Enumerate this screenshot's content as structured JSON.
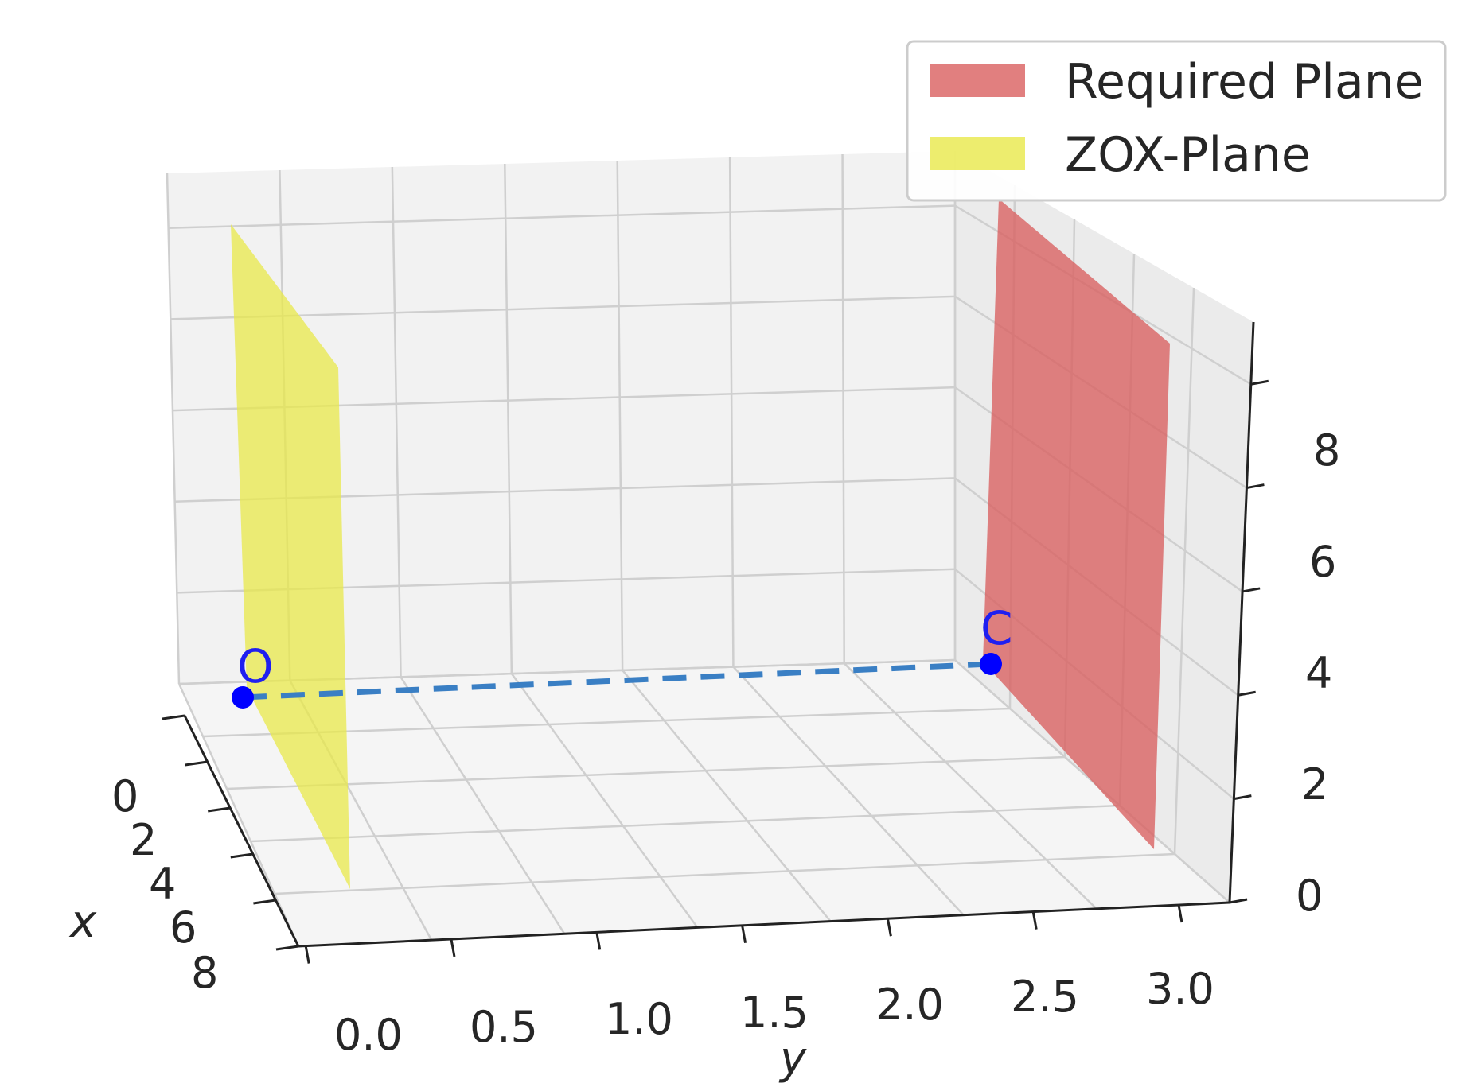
{
  "chart_data": {
    "type": "3d-plot",
    "axes": {
      "x": {
        "label": "x",
        "ticks": [
          "0",
          "2",
          "4",
          "6",
          "8"
        ]
      },
      "y": {
        "label": "y",
        "ticks": [
          "0.0",
          "0.5",
          "1.0",
          "1.5",
          "2.0",
          "2.5",
          "3.0"
        ]
      },
      "z": {
        "label": "",
        "ticks": [
          "0",
          "2",
          "4",
          "6",
          "8"
        ]
      }
    },
    "grid": true,
    "legend": {
      "placement": "top-right",
      "entries": [
        {
          "label": "Required Plane",
          "color": "#d95f5f"
        },
        {
          "label": "ZOX-Plane",
          "color": "#e8e84a"
        }
      ]
    },
    "planes": [
      {
        "name": "Required Plane",
        "equation": "y = 3",
        "color": "#d95f5f",
        "alpha": 0.75
      },
      {
        "name": "ZOX-Plane",
        "equation": "y = 0",
        "color": "#e8e84a",
        "alpha": 0.75
      }
    ],
    "points": [
      {
        "label": "O",
        "x": 0,
        "y": 0,
        "z": 4,
        "color": "#0000ff"
      },
      {
        "label": "C",
        "x": 0,
        "y": 3,
        "z": 4,
        "color": "#0000ff"
      }
    ],
    "segments": [
      {
        "from": "O",
        "to": "C",
        "style": "dashed",
        "color": "#3a7fc4"
      }
    ]
  }
}
